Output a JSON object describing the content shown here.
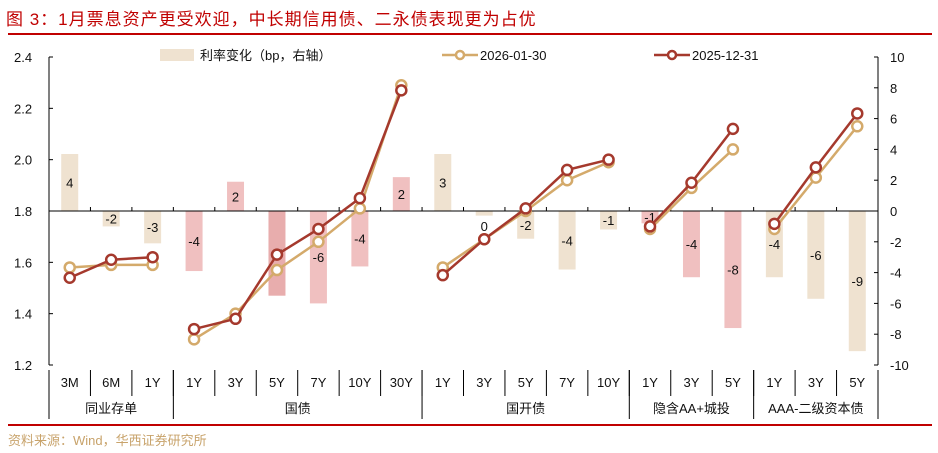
{
  "title": "图 3：1月票息资产更受欢迎，中长期信用债、二永债表现更为占优",
  "source": "资料来源：Wind，华西证券研究所",
  "colors": {
    "title_red": "#c00000",
    "line_2026": "#d4aa6b",
    "line_2025": "#a5392d",
    "bar_beige": "#efe2d0",
    "bar_pink": "#f0c0c0",
    "bar_pink_dark": "#e8adad",
    "source_text": "#c8a36b"
  },
  "chart_data": {
    "type": "bar+line",
    "title": "1月票息资产更受欢迎，中长期信用债、二永债表现更为占优",
    "categories": [
      "3M",
      "6M",
      "1Y",
      "1Y",
      "3Y",
      "5Y",
      "7Y",
      "10Y",
      "30Y",
      "1Y",
      "3Y",
      "5Y",
      "7Y",
      "10Y",
      "1Y",
      "3Y",
      "5Y",
      "1Y",
      "3Y",
      "5Y"
    ],
    "groups": [
      {
        "name": "同业存单",
        "count": 3
      },
      {
        "name": "国债",
        "count": 6
      },
      {
        "name": "国开债",
        "count": 5
      },
      {
        "name": "隐含AA+城投",
        "count": 3
      },
      {
        "name": "AAA-二级资本债",
        "count": 3
      }
    ],
    "series": [
      {
        "name": "利率变化（bp，右轴）",
        "type": "bar",
        "axis": "right",
        "values": [
          4,
          -2,
          -3,
          -4,
          2,
          -5,
          -6,
          -4,
          2,
          3,
          0,
          -2,
          -4,
          -1,
          -1,
          -4,
          -8,
          -4,
          -6,
          -9
        ],
        "bar_colors": [
          "beige",
          "beige",
          "beige",
          "pink",
          "pink",
          "pinkdark",
          "pink",
          "pink",
          "pink",
          "beige",
          "beige",
          "beige",
          "beige",
          "beige",
          "pink",
          "pink",
          "pink",
          "beige",
          "beige",
          "beige"
        ],
        "bar_heights": [
          3.7,
          -1.0,
          -2.1,
          -3.9,
          1.9,
          -5.5,
          -6.0,
          -3.6,
          2.2,
          3.7,
          -0.3,
          -1.8,
          -3.8,
          -1.2,
          -0.8,
          -4.3,
          -7.6,
          -4.3,
          -5.7,
          -9.1
        ]
      },
      {
        "name": "2026-01-30",
        "type": "line",
        "axis": "left",
        "values": [
          1.58,
          1.59,
          1.59,
          1.3,
          1.4,
          1.57,
          1.68,
          1.81,
          2.29,
          1.58,
          1.69,
          1.8,
          1.92,
          1.99,
          1.73,
          1.89,
          2.04,
          1.73,
          1.93,
          2.13
        ]
      },
      {
        "name": "2025-12-31",
        "type": "line",
        "axis": "left",
        "values": [
          1.54,
          1.61,
          1.62,
          1.34,
          1.38,
          1.63,
          1.73,
          1.85,
          2.27,
          1.55,
          1.69,
          1.81,
          1.96,
          2.0,
          1.74,
          1.91,
          2.12,
          1.75,
          1.97,
          2.18
        ]
      }
    ],
    "left_axis": {
      "ylim": [
        1.2,
        2.4
      ],
      "ticks": [
        "2.4",
        "2.2",
        "2.0",
        "1.8",
        "1.6",
        "1.4",
        "1.2"
      ]
    },
    "right_axis": {
      "ylim": [
        -10,
        10
      ],
      "ticks": [
        "10",
        "8",
        "6",
        "4",
        "2",
        "0",
        "-2",
        "-4",
        "-6",
        "-8",
        "-10"
      ]
    },
    "legend": {
      "position": "top",
      "entries": [
        "利率变化（bp，右轴）",
        "2026-01-30",
        "2025-12-31"
      ]
    },
    "grid": false
  }
}
